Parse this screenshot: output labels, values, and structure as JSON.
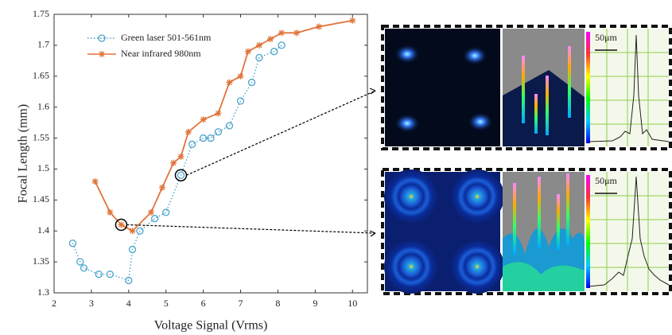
{
  "chart_data": {
    "type": "line",
    "x_label": "Voltage Signal (Vrms)",
    "y_label": "Focal Length (mm)",
    "xlim": [
      2,
      10.4
    ],
    "ylim": [
      1.3,
      1.75
    ],
    "xticks": [
      2,
      3,
      4,
      5,
      6,
      7,
      8,
      9,
      10
    ],
    "yticks": [
      1.3,
      1.35,
      1.4,
      1.45,
      1.5,
      1.55,
      1.6,
      1.65,
      1.7,
      1.75
    ],
    "legend": "upper-left",
    "series": [
      {
        "name": "Green laser 501-561nm",
        "color": "#4aa3cc",
        "marker": "circle",
        "line_style": "dotted",
        "x": [
          2.5,
          2.7,
          2.8,
          3.2,
          3.5,
          4.0,
          4.1,
          4.3,
          4.7,
          5.0,
          5.4,
          5.7,
          6.0,
          6.2,
          6.4,
          6.7,
          7.0,
          7.3,
          7.5,
          7.9,
          8.1
        ],
        "values": [
          1.38,
          1.35,
          1.34,
          1.33,
          1.33,
          1.32,
          1.37,
          1.4,
          1.42,
          1.43,
          1.49,
          1.54,
          1.55,
          1.55,
          1.56,
          1.57,
          1.61,
          1.64,
          1.68,
          1.69,
          1.7
        ]
      },
      {
        "name": "Near infrared  980nm",
        "color": "#e0743a",
        "marker": "star",
        "line_style": "solid",
        "x": [
          3.1,
          3.5,
          3.8,
          4.1,
          4.6,
          4.9,
          5.2,
          5.4,
          5.6,
          6.0,
          6.4,
          6.7,
          7.0,
          7.2,
          7.5,
          7.8,
          8.1,
          8.5,
          9.1,
          10.0
        ],
        "values": [
          1.48,
          1.43,
          1.41,
          1.4,
          1.43,
          1.47,
          1.51,
          1.52,
          1.56,
          1.58,
          1.59,
          1.64,
          1.65,
          1.69,
          1.7,
          1.71,
          1.72,
          1.72,
          1.73,
          1.74
        ]
      }
    ]
  },
  "panels": {
    "top_scale_label": "50μm",
    "bottom_scale_label": "50μm"
  }
}
